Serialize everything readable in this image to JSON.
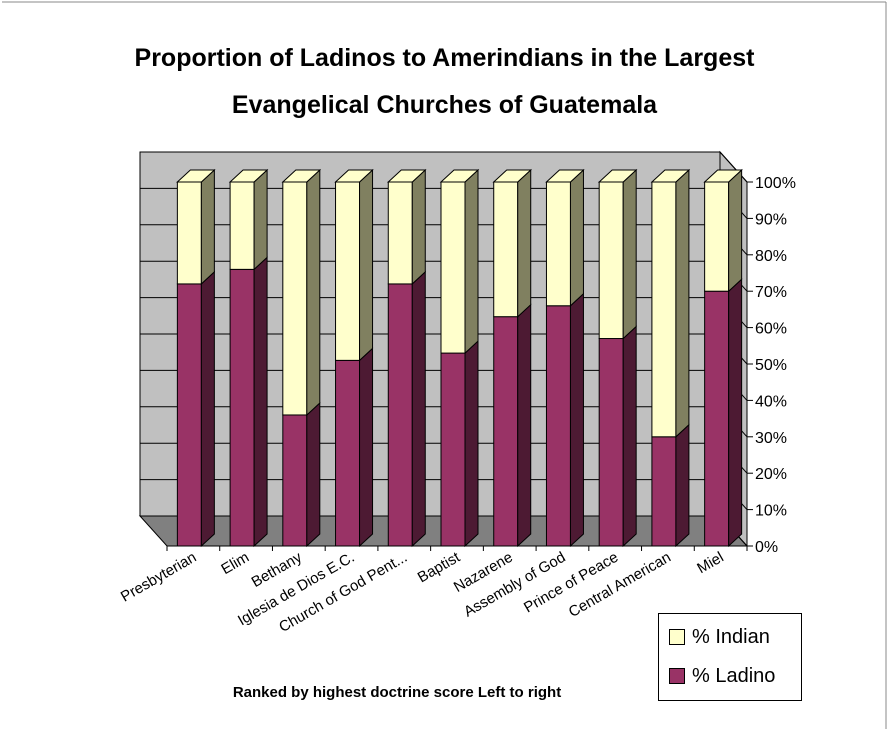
{
  "chart_data": {
    "type": "bar",
    "subtype": "stacked-100-percent-3d",
    "title_lines": [
      "Proportion of Ladinos to Amerindians in the Largest",
      "Evangelical Churches of Guatemala"
    ],
    "xlabel": "Ranked by highest doctrine score Left to right",
    "ylabel": "",
    "ylim": [
      0,
      100
    ],
    "y_ticks": [
      "0%",
      "10%",
      "20%",
      "30%",
      "40%",
      "50%",
      "60%",
      "70%",
      "80%",
      "90%",
      "100%"
    ],
    "categories": [
      "Presbyterian",
      "Elim",
      "Bethany",
      "Iglesia de Dios E.C.",
      "Church of God Pent...",
      "Baptist",
      "Nazarene",
      "Assembly of God",
      "Prince of Peace",
      "Central American",
      "Miel"
    ],
    "series": [
      {
        "name": "% Ladino",
        "color": "#993366",
        "values": [
          72,
          76,
          36,
          51,
          72,
          53,
          63,
          66,
          57,
          30,
          70
        ]
      },
      {
        "name": "% Indian",
        "color": "#FFFFCC",
        "values": [
          28,
          24,
          64,
          49,
          28,
          47,
          37,
          34,
          43,
          70,
          30
        ]
      }
    ],
    "legend_position": "bottom-right",
    "grid": true
  },
  "colors": {
    "ladino_front": "#993366",
    "ladino_side": "#4d1a33",
    "indian_front": "#FFFFCC",
    "indian_side": "#808060",
    "back_wall": "#c0c0c0",
    "floor": "#808080"
  }
}
